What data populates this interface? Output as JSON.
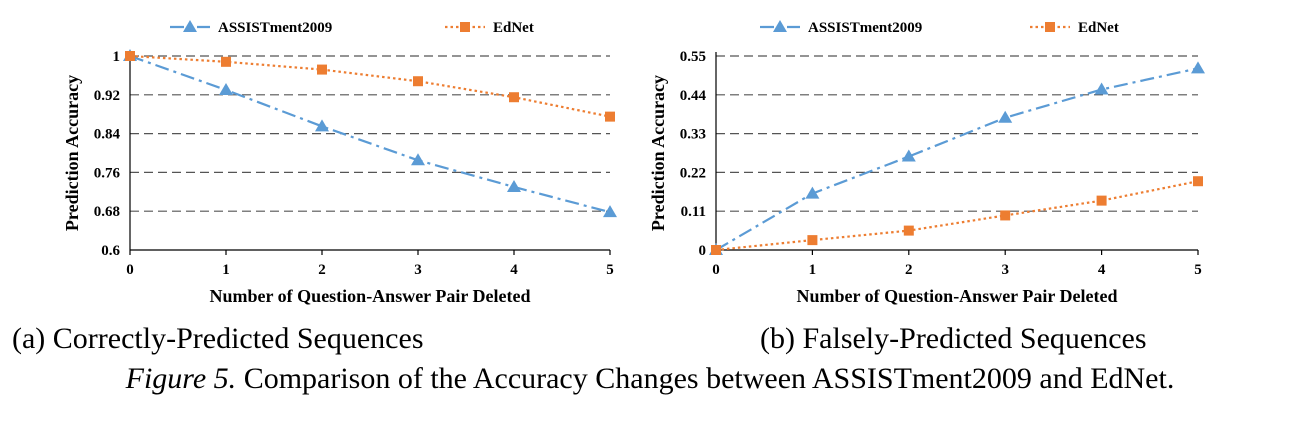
{
  "chart_data": [
    {
      "type": "line",
      "caption": "(a) Correctly-Predicted Sequences",
      "x": [
        0,
        1,
        2,
        3,
        4,
        5
      ],
      "xlabel": "Number of Question-Answer Pair Deleted",
      "ylabel": "Prediction Accuracy",
      "ylim": [
        0.6,
        1
      ],
      "yticks": [
        "0.6",
        "0.68",
        "0.76",
        "0.84",
        "0.92",
        "1"
      ],
      "grid": "horizontal dashed",
      "legend": "top",
      "series": [
        {
          "name": "ASSISTment2009",
          "values": [
            1.0,
            0.93,
            0.855,
            0.785,
            0.73,
            0.678
          ],
          "color": "#5b9bd5",
          "marker": "triangle",
          "line": "dash-dot"
        },
        {
          "name": "EdNet",
          "values": [
            1.0,
            0.988,
            0.972,
            0.948,
            0.915,
            0.875
          ],
          "color": "#ed7d31",
          "marker": "square",
          "line": "dotted"
        }
      ]
    },
    {
      "type": "line",
      "caption": "(b) Falsely-Predicted Sequences",
      "x": [
        0,
        1,
        2,
        3,
        4,
        5
      ],
      "xlabel": "Number of Question-Answer Pair Deleted",
      "ylabel": "Prediction Accuracy",
      "ylim": [
        0,
        0.55
      ],
      "yticks": [
        "0",
        "0.11",
        "0.22",
        "0.33",
        "0.44",
        "0.55"
      ],
      "grid": "horizontal dashed",
      "legend": "top",
      "series": [
        {
          "name": "ASSISTment2009",
          "values": [
            0.0,
            0.16,
            0.265,
            0.375,
            0.455,
            0.515
          ],
          "color": "#5b9bd5",
          "marker": "triangle",
          "line": "dash-dot"
        },
        {
          "name": "EdNet",
          "values": [
            0.0,
            0.028,
            0.055,
            0.098,
            0.14,
            0.195
          ],
          "color": "#ed7d31",
          "marker": "square",
          "line": "dotted"
        }
      ]
    }
  ],
  "figure_caption": {
    "lead": "Figure 5.",
    "text": " Comparison of the Accuracy Changes between ASSISTment2009 and EdNet."
  }
}
